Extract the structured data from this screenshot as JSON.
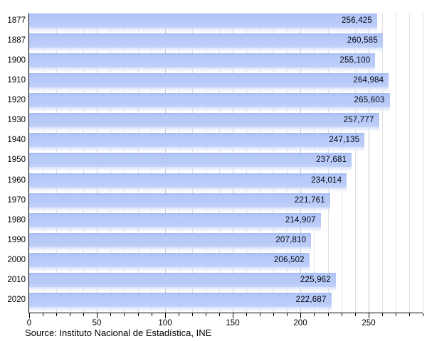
{
  "chart_data": {
    "type": "bar",
    "orientation": "horizontal",
    "title": "",
    "xlabel": "",
    "ylabel": "",
    "grid": true,
    "legend_position": "none",
    "categories": [
      "1877",
      "1887",
      "1900",
      "1910",
      "1920",
      "1930",
      "1940",
      "1950",
      "1960",
      "1970",
      "1980",
      "1990",
      "2000",
      "2010",
      "2020"
    ],
    "values": [
      256425,
      260585,
      255100,
      264984,
      265603,
      257777,
      247135,
      237681,
      234014,
      221761,
      214907,
      207810,
      206502,
      225962,
      222687
    ],
    "value_labels": [
      "256,425",
      "260,585",
      "255,100",
      "264,984",
      "265,603",
      "257,777",
      "247,135",
      "237,681",
      "234,014",
      "221,761",
      "214,907",
      "207,810",
      "206,502",
      "225,962",
      "222,687"
    ],
    "x_axis": {
      "min": 0,
      "max": 290,
      "unit_divisor": 1000,
      "minor_tick_step": 10,
      "major_tick_step": 50,
      "major_tick_labels": [
        "0",
        "50",
        "100",
        "150",
        "200",
        "250"
      ]
    },
    "source": "Source: Instituto Nacional de Estadística, INE",
    "colors": {
      "bar": "#b5c8f7",
      "bar_top": "#a6bdf4",
      "bar_bottom": "#c3d2f9",
      "grid_minor": "#e0e0e0",
      "grid_major": "#c6c6c6",
      "axis": "#000000",
      "text": "#000000",
      "value_text": "#05050f"
    }
  }
}
